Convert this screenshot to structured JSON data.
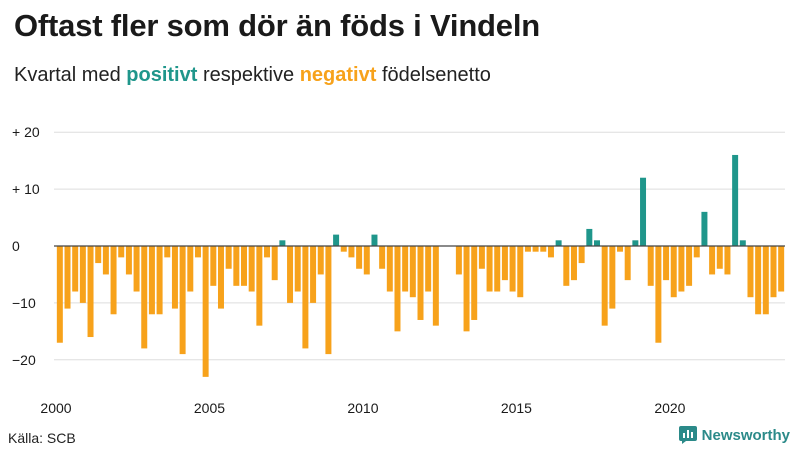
{
  "title": "Oftast fler som dör än föds i Vindeln",
  "subtitle": {
    "prefix": "Kvartal med",
    "positive_word": "positivt",
    "middle": "respektive",
    "negative_word": "negativt",
    "suffix": "födelsenetto"
  },
  "colors": {
    "positive": "#1f968b",
    "negative": "#f7a21b",
    "grid": "#dddddd",
    "zero_line": "#444444",
    "brand": "#2b8a89"
  },
  "source": "Källa: SCB",
  "brand": {
    "name": "Newsworthy",
    "icon": "newsworthy-logo-icon"
  },
  "chart_data": {
    "type": "bar",
    "title": "Oftast fler som dör än föds i Vindeln",
    "xlabel": "",
    "ylabel": "",
    "ylim": [
      -25,
      22
    ],
    "yticks": [
      {
        "value": 20,
        "label": "+ 20"
      },
      {
        "value": 10,
        "label": "+ 10"
      },
      {
        "value": 0,
        "label": "0"
      },
      {
        "value": -10,
        "label": "−10"
      },
      {
        "value": -20,
        "label": "−20"
      }
    ],
    "xticks": [
      {
        "value": 2000,
        "label": "2000"
      },
      {
        "value": 2005,
        "label": "2005"
      },
      {
        "value": 2010,
        "label": "2010"
      },
      {
        "value": 2015,
        "label": "2015"
      },
      {
        "value": 2020,
        "label": "2020"
      }
    ],
    "start_year": 2000,
    "periods_per_year": 4,
    "values": [
      -17,
      -11,
      -8,
      -10,
      -16,
      -3,
      -5,
      -12,
      -2,
      -5,
      -8,
      -18,
      -12,
      -12,
      -2,
      -11,
      -19,
      -8,
      -2,
      -23,
      -7,
      -11,
      -4,
      -7,
      -7,
      -8,
      -14,
      -2,
      -6,
      1,
      -10,
      -8,
      -18,
      -10,
      -5,
      -19,
      2,
      -1,
      -2,
      -4,
      -5,
      2,
      -4,
      -8,
      -15,
      -8,
      -9,
      -13,
      -8,
      -14,
      0,
      0,
      -5,
      -15,
      -13,
      -4,
      -8,
      -8,
      -6,
      -8,
      -9,
      -1,
      -1,
      -1,
      -2,
      1,
      -7,
      -6,
      -3,
      3,
      1,
      -14,
      -11,
      -1,
      -6,
      1,
      12,
      -7,
      -17,
      -6,
      -9,
      -8,
      -7,
      -2,
      6,
      -5,
      -4,
      -5,
      16,
      1,
      -9,
      -12,
      -12,
      -9,
      -8
    ]
  }
}
